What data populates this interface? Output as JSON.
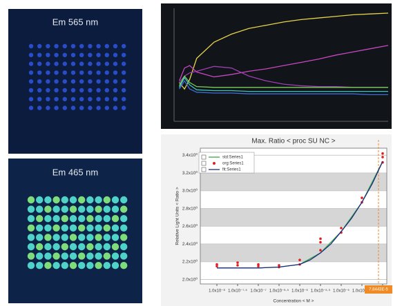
{
  "panels": [
    {
      "label": "Em 565 nm"
    },
    {
      "label": "Em 465 nm"
    }
  ],
  "chart_data": [
    {
      "type": "line",
      "background": "#111418",
      "x": [
        0,
        0.3,
        0.6,
        1,
        2,
        3,
        4,
        5,
        6,
        7,
        8,
        9,
        10,
        11,
        12
      ],
      "xlim": [
        -0.3,
        12
      ],
      "ylim": [
        2.1,
        3.5
      ],
      "series": [
        {
          "color": "#e8d44a",
          "values": [
            2.58,
            2.5,
            2.62,
            2.88,
            3.08,
            3.18,
            3.25,
            3.29,
            3.33,
            3.36,
            3.38,
            3.4,
            3.42,
            3.43,
            3.44
          ]
        },
        {
          "color": "#c848c0",
          "values": [
            2.6,
            2.76,
            2.79,
            2.71,
            2.65,
            2.68,
            2.72,
            2.75,
            2.79,
            2.83,
            2.87,
            2.92,
            2.96,
            3.0,
            3.04
          ]
        },
        {
          "color": "#9a40b0",
          "values": [
            2.58,
            2.66,
            2.7,
            2.72,
            2.78,
            2.76,
            2.66,
            2.6,
            2.56,
            2.54,
            2.53,
            2.53,
            2.52,
            2.52,
            2.52
          ]
        },
        {
          "color": "#7ccf5a",
          "values": [
            2.54,
            2.66,
            2.58,
            2.53,
            2.52,
            2.52,
            2.52,
            2.52,
            2.52,
            2.52,
            2.52,
            2.52,
            2.52,
            2.52,
            2.52
          ]
        },
        {
          "color": "#3fc4c0",
          "values": [
            2.52,
            2.64,
            2.55,
            2.49,
            2.48,
            2.48,
            2.47,
            2.47,
            2.47,
            2.47,
            2.47,
            2.47,
            2.47,
            2.47,
            2.47
          ]
        },
        {
          "color": "#3c6fd8",
          "values": [
            2.5,
            2.6,
            2.5,
            2.46,
            2.45,
            2.45,
            2.44,
            2.44,
            2.44,
            2.44,
            2.44,
            2.44,
            2.44,
            2.43,
            2.43
          ]
        }
      ]
    },
    {
      "type": "line",
      "title": "Max. Ratio < proc SU NC >",
      "x_label": "Concentration < M >",
      "y_label": "Relative Light Units < Ratio >",
      "xlim": [
        -8.4,
        -3.9
      ],
      "ylim": [
        1.95,
        3.48
      ],
      "xticks": [
        {
          "value": -8,
          "label": "1.0x10⁻⁸"
        },
        {
          "value": -7.5,
          "label": "1.0x10⁻⁷·⁵"
        },
        {
          "value": -7,
          "label": "1.0x10⁻⁷"
        },
        {
          "value": -6.5,
          "label": "1.0x10⁻⁶·⁵"
        },
        {
          "value": -6,
          "label": "1.0x10⁻⁶"
        },
        {
          "value": -5.5,
          "label": "1.0x10⁻⁵·⁵"
        },
        {
          "value": -5,
          "label": "1.0x10⁻⁵"
        },
        {
          "value": -4.5,
          "label": "1.0x10⁻⁴·⁵"
        },
        {
          "value": -4,
          "label": "1.0x10⁻⁴"
        }
      ],
      "yticks": [
        {
          "value": 2.0,
          "label": "2.0x10⁰"
        },
        {
          "value": 2.2,
          "label": "2.2x10⁰"
        },
        {
          "value": 2.4,
          "label": "2.4x10⁰"
        },
        {
          "value": 2.6,
          "label": "2.6x10⁰"
        },
        {
          "value": 2.8,
          "label": "2.8x10⁰"
        },
        {
          "value": 3.0,
          "label": "3.0x10⁰"
        },
        {
          "value": 3.2,
          "label": "3.2x10⁰"
        },
        {
          "value": 3.4,
          "label": "3.4x10⁰"
        }
      ],
      "series": [
        {
          "name": "std:Series1",
          "color": "#3aa845",
          "style": "line",
          "x": [
            -8,
            -7.5,
            -7,
            -6.5,
            -6,
            -5.5,
            -5,
            -4.5,
            -4
          ],
          "values": [
            2.13,
            2.13,
            2.13,
            2.14,
            2.17,
            2.3,
            2.54,
            2.87,
            3.33
          ]
        },
        {
          "name": "org:Series1",
          "color": "#e02020",
          "style": "markers",
          "x": [
            -8,
            -8,
            -7.5,
            -7.5,
            -7,
            -7,
            -6.5,
            -6.5,
            -6,
            -6,
            -5.5,
            -5.5,
            -5.5,
            -5,
            -5,
            -4.5,
            -4.5,
            -4,
            -4,
            -4
          ],
          "values": [
            2.15,
            2.17,
            2.16,
            2.19,
            2.15,
            2.17,
            2.14,
            2.16,
            2.17,
            2.22,
            2.33,
            2.42,
            2.46,
            2.53,
            2.58,
            2.87,
            2.92,
            3.32,
            3.38,
            3.42
          ]
        },
        {
          "name": "fit:Series1",
          "color": "#1a2a80",
          "style": "line",
          "x": [
            -8,
            -7.5,
            -7,
            -6.5,
            -6,
            -5.75,
            -5.5,
            -5.25,
            -5,
            -4.75,
            -4.5,
            -4.25,
            -4
          ],
          "values": [
            2.13,
            2.13,
            2.13,
            2.14,
            2.17,
            2.22,
            2.3,
            2.4,
            2.54,
            2.69,
            2.87,
            3.08,
            3.33
          ]
        }
      ],
      "annotation": {
        "text": "7.8443E-5",
        "x": -4.1,
        "color": "#f08a24"
      }
    }
  ]
}
